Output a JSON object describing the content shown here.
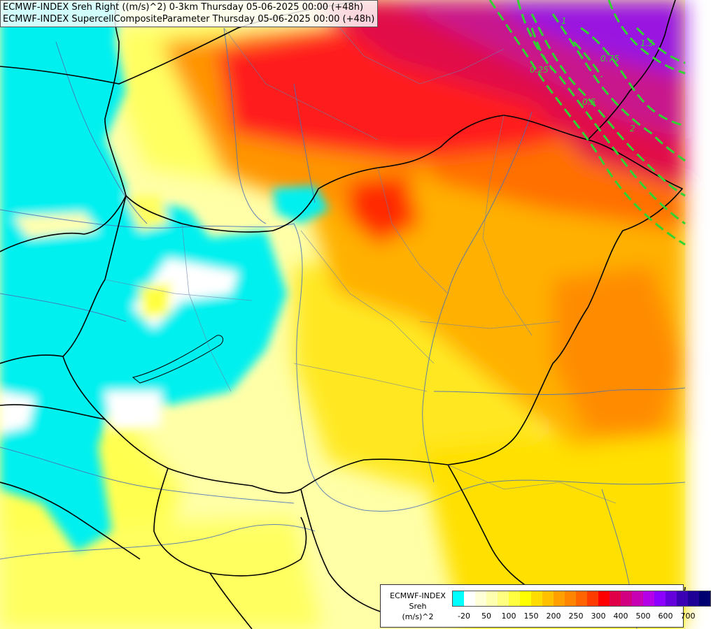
{
  "titles": {
    "line1": "ECMWF-INDEX Sreh Right ((m/s)^2) 0-3km Thursday 05-06-2025 00:00 (+48h)",
    "line2": "ECMWF-INDEX SupercellCompositeParameter Thursday 05-06-2025 00:00 (+48h)"
  },
  "legend": {
    "line1": "ECMWF-INDEX",
    "line2": "Sreh",
    "line3": "(m/s)^2",
    "colors": [
      "#00ffff",
      "#ffffff",
      "#ffffd8",
      "#ffffb0",
      "#ffff80",
      "#ffff40",
      "#ffff00",
      "#ffdc00",
      "#ffc000",
      "#ffa000",
      "#ff8400",
      "#ff6400",
      "#ff3c00",
      "#ff0000",
      "#e00048",
      "#d00080",
      "#c800b4",
      "#b400e6",
      "#8c00ff",
      "#6400dc",
      "#3c00b4",
      "#1e0096",
      "#000070"
    ],
    "ticks": [
      {
        "label": "-20",
        "index": 1
      },
      {
        "label": "50",
        "index": 3
      },
      {
        "label": "100",
        "index": 5
      },
      {
        "label": "150",
        "index": 7
      },
      {
        "label": "200",
        "index": 9
      },
      {
        "label": "250",
        "index": 11
      },
      {
        "label": "300",
        "index": 13
      },
      {
        "label": "400",
        "index": 15
      },
      {
        "label": "500",
        "index": 17
      },
      {
        "label": "600",
        "index": 19
      },
      {
        "label": "700",
        "index": 21
      }
    ]
  },
  "contours": {
    "color": "#32d232",
    "labels": [
      "0.25",
      "0.5",
      "0.75",
      "1",
      "1.5",
      "2"
    ]
  }
}
